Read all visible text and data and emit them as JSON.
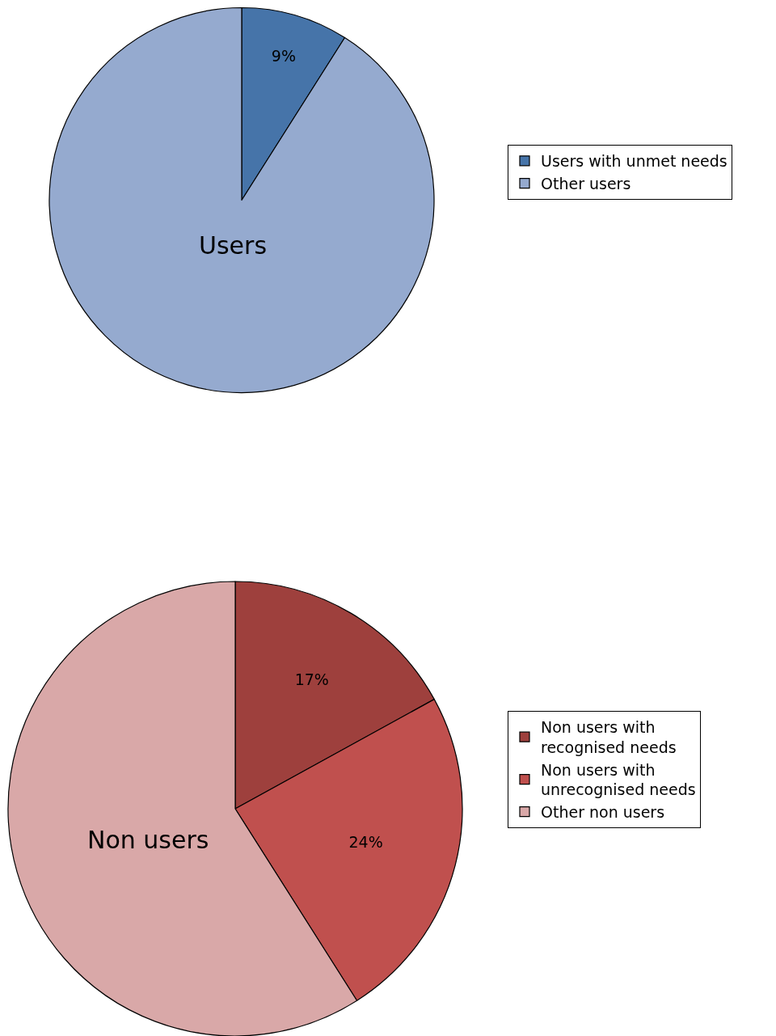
{
  "chart_data": [
    {
      "type": "pie",
      "categories": [
        "Users with unmet needs",
        "Other users"
      ],
      "values": [
        9,
        91
      ],
      "colors": [
        "#4674a9",
        "#95aacf"
      ],
      "value_labels": [
        "9%",
        null
      ],
      "annotations": [
        "Users"
      ],
      "legend": "right"
    },
    {
      "type": "pie",
      "categories": [
        "Non users with recognised needs",
        "Non users with unrecognised needs",
        "Other non users"
      ],
      "values": [
        17,
        24,
        59
      ],
      "colors": [
        "#9e403d",
        "#c0504e",
        "#d9a8a8"
      ],
      "value_labels": [
        "17%",
        "24%",
        null
      ],
      "annotations": [
        "Non users"
      ],
      "legend": "right"
    }
  ]
}
